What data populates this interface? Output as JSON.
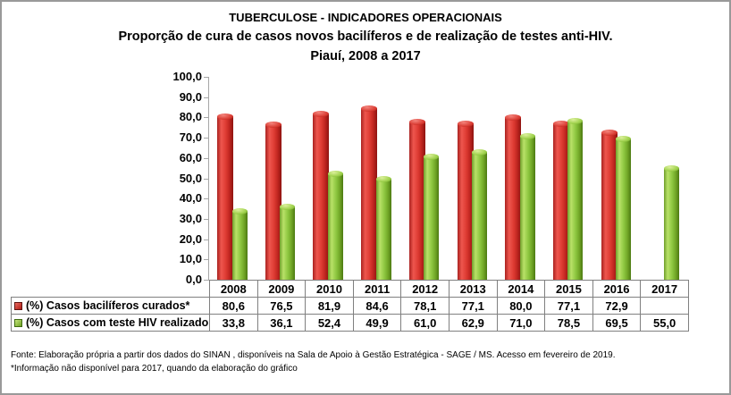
{
  "header": {
    "title_line1": "TUBERCULOSE - INDICADORES OPERACIONAIS",
    "title_line2": "Proporção de cura de casos novos bacilíferos e de realização de testes anti-HIV.",
    "title_line3": "Piauí, 2008 a 2017"
  },
  "chart_data": {
    "type": "bar",
    "title": "TUBERCULOSE - INDICADORES OPERACIONAIS",
    "subtitle": "Proporção de cura de casos novos bacilíferos e de realização de testes anti-HIV. Piauí, 2008 a 2017",
    "categories": [
      "2008",
      "2009",
      "2010",
      "2011",
      "2012",
      "2013",
      "2014",
      "2015",
      "2016",
      "2017"
    ],
    "series": [
      {
        "name": "(%) Casos bacilíferos curados*",
        "color": "#d8342c",
        "values": [
          80.6,
          76.5,
          81.9,
          84.6,
          78.1,
          77.1,
          80.0,
          77.1,
          72.9,
          null
        ],
        "labels": [
          "80,6",
          "76,5",
          "81,9",
          "84,6",
          "78,1",
          "77,1",
          "80,0",
          "77,1",
          "72,9",
          ""
        ]
      },
      {
        "name": "(%) Casos com teste HIV realizado",
        "color": "#8cc63f",
        "values": [
          33.8,
          36.1,
          52.4,
          49.9,
          61.0,
          62.9,
          71.0,
          78.5,
          69.5,
          55.0
        ],
        "labels": [
          "33,8",
          "36,1",
          "52,4",
          "49,9",
          "61,0",
          "62,9",
          "71,0",
          "78,5",
          "69,5",
          "55,0"
        ]
      }
    ],
    "xlabel": "",
    "ylabel": "",
    "ylim": [
      0,
      100
    ],
    "ytick_step": 10,
    "ytick_labels": [
      "100,0",
      "90,0",
      "80,0",
      "70,0",
      "60,0",
      "50,0",
      "40,0",
      "30,0",
      "20,0",
      "10,0",
      "0,0"
    ],
    "grid": false,
    "legend_position": "table-below-left-column",
    "bar_style": "3d-cylinder"
  },
  "footer": {
    "line1": "Fonte: Elaboração própria a partir dos dados do SINAN , disponíveis na Sala de Apoio à Gestão Estratégica - SAGE / MS. Acesso em fevereiro de 2019.",
    "line2": "*Informação não disponível para 2017, quando da elaboração do gráfico"
  }
}
